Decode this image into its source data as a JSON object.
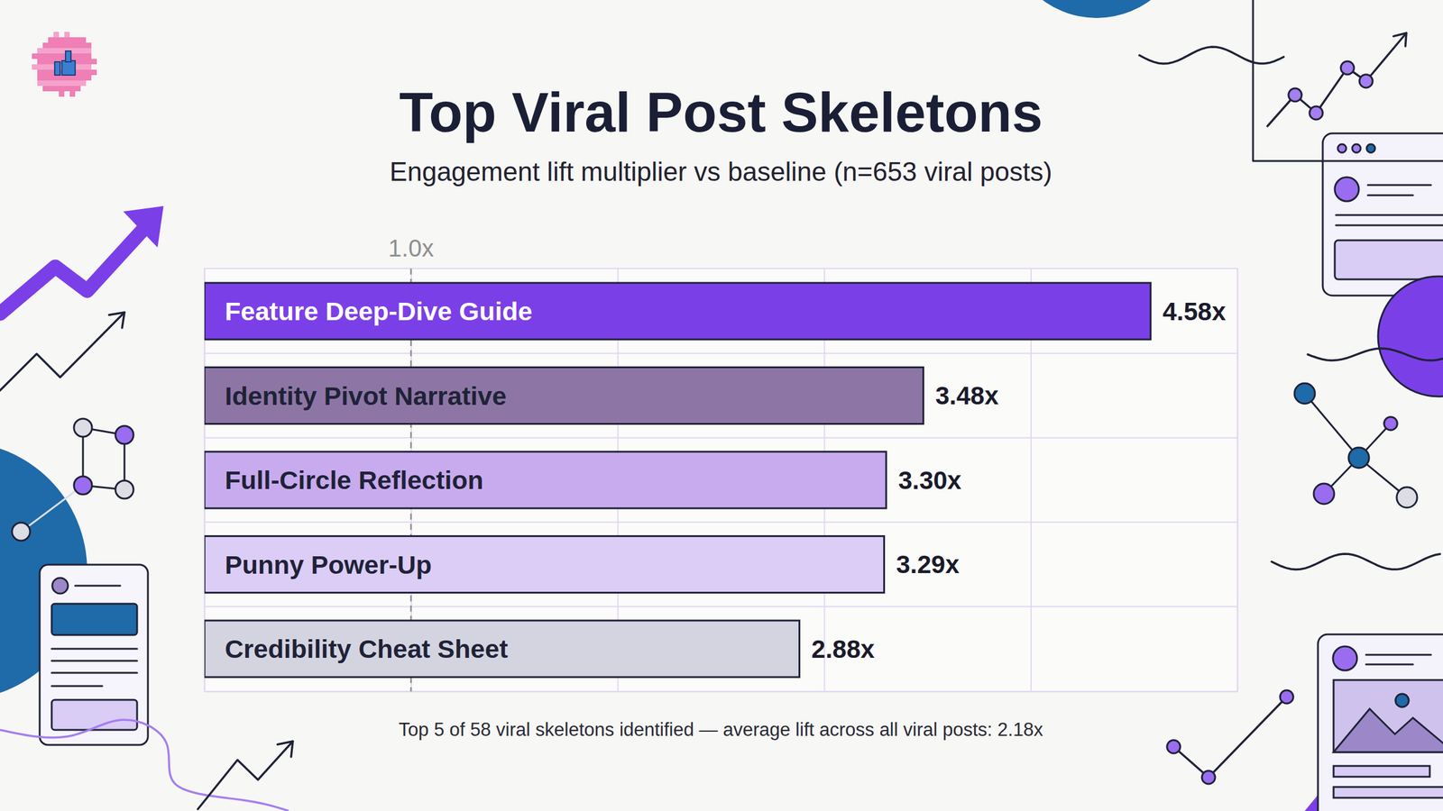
{
  "chart_data": {
    "type": "bar",
    "orientation": "horizontal",
    "title": "Top Viral Post Skeletons",
    "subtitle": "Engagement lift multiplier vs baseline (n=653 viral posts)",
    "categories": [
      "Feature Deep-Dive Guide",
      "Identity Pivot Narrative",
      "Full-Circle Reflection",
      "Punny Power-Up",
      "Credibility Cheat Sheet"
    ],
    "values": [
      4.58,
      3.48,
      3.3,
      3.29,
      2.88
    ],
    "value_labels": [
      "4.58x",
      "3.48x",
      "3.30x",
      "3.29x",
      "2.88x"
    ],
    "colors": [
      "#7b3fe8",
      "#8d76a5",
      "#c8abee",
      "#dccdf7",
      "#d4d4e1"
    ],
    "data_labels": true,
    "xlim": [
      0,
      5
    ],
    "xticks": [
      0,
      1,
      2,
      3,
      4,
      5
    ],
    "grid": true,
    "tick_labels": false,
    "reference_line": {
      "value": 1,
      "label": "1.0x"
    },
    "footnote": "Top 5 of 58 viral skeletons identified — average lift across all viral posts: 2.18x"
  }
}
